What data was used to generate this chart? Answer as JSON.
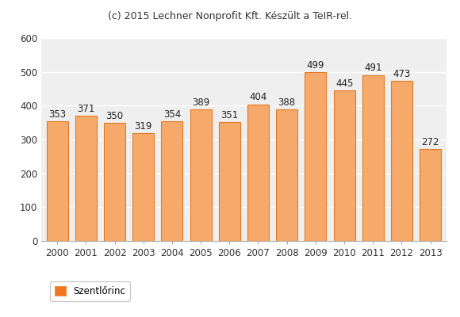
{
  "title": "(c) 2015 Lechner Nonprofit Kft. Készült a TeIR-rel.",
  "years": [
    2000,
    2001,
    2002,
    2003,
    2004,
    2005,
    2006,
    2007,
    2008,
    2009,
    2010,
    2011,
    2012,
    2013
  ],
  "values": [
    353,
    371,
    350,
    319,
    354,
    389,
    351,
    404,
    388,
    499,
    445,
    491,
    473,
    272
  ],
  "bar_color": "#F5A96A",
  "bar_edge_color": "#E87820",
  "ylim": [
    0,
    600
  ],
  "yticks": [
    0,
    100,
    200,
    300,
    400,
    500,
    600
  ],
  "legend_label": "Szentlőrinc",
  "legend_color": "#F07820",
  "figure_bg_color": "#ffffff",
  "plot_bg_color": "#EFEFEF",
  "grid_color": "#ffffff",
  "title_fontsize": 9,
  "label_fontsize": 8.5,
  "tick_fontsize": 8.5
}
